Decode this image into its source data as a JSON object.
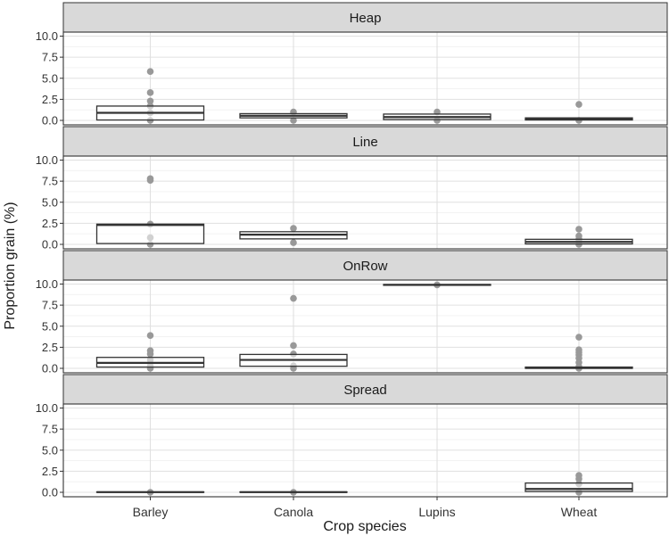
{
  "chart_data": {
    "type": "boxplot",
    "xlabel": "Crop species",
    "ylabel": "Proportion grain (%)",
    "categories": [
      "Barley",
      "Canola",
      "Lupins",
      "Wheat"
    ],
    "ylim": [
      0,
      10
    ],
    "yticks": [
      "0.0",
      "2.5",
      "5.0",
      "7.5",
      "10.0"
    ],
    "grid": true,
    "facets": [
      {
        "title": "Heap",
        "boxes": [
          {
            "category": "Barley",
            "q1": 0.05,
            "median": 0.9,
            "q3": 1.7,
            "points": [
              5.8,
              3.3,
              2.3,
              1.7,
              0.9,
              0.0
            ]
          },
          {
            "category": "Canola",
            "q1": 0.3,
            "median": 0.55,
            "q3": 0.8,
            "points": [
              1.0,
              0.0
            ]
          },
          {
            "category": "Lupins",
            "q1": 0.1,
            "median": 0.4,
            "q3": 0.75,
            "points": [
              1.0,
              0.0
            ]
          },
          {
            "category": "Wheat",
            "q1": 0.05,
            "median": 0.15,
            "q3": 0.3,
            "points": [
              1.9,
              0.0
            ]
          }
        ]
      },
      {
        "title": "Line",
        "boxes": [
          {
            "category": "Barley",
            "q1": 0.1,
            "median": 2.3,
            "q3": 2.4,
            "points": [
              7.8,
              7.6,
              2.4,
              0.8,
              0.0
            ]
          },
          {
            "category": "Canola",
            "q1": 0.65,
            "median": 1.15,
            "q3": 1.5,
            "points": [
              1.9,
              0.2
            ]
          },
          {
            "category": "Wheat",
            "q1": 0.05,
            "median": 0.3,
            "q3": 0.6,
            "points": [
              1.8,
              1.0,
              0.6,
              0.0
            ]
          }
        ]
      },
      {
        "title": "OnRow",
        "boxes": [
          {
            "category": "Barley",
            "q1": 0.15,
            "median": 0.65,
            "q3": 1.3,
            "points": [
              3.9,
              2.1,
              1.7,
              1.0,
              0.3,
              0.0
            ]
          },
          {
            "category": "Canola",
            "q1": 0.25,
            "median": 1.0,
            "q3": 1.65,
            "points": [
              8.3,
              2.7,
              1.7,
              0.3,
              0.0
            ]
          },
          {
            "category": "Lupins",
            "q1": 9.85,
            "median": 9.9,
            "q3": 9.95,
            "points": [
              9.9
            ]
          },
          {
            "category": "Wheat",
            "q1": 0.0,
            "median": 0.05,
            "q3": 0.15,
            "points": [
              3.7,
              2.2,
              1.9,
              1.6,
              1.2,
              0.7,
              0.2,
              0.0
            ]
          }
        ]
      },
      {
        "title": "Spread",
        "boxes": [
          {
            "category": "Barley",
            "q1": 0.0,
            "median": 0.02,
            "q3": 0.05,
            "points": [
              0.0
            ]
          },
          {
            "category": "Canola",
            "q1": 0.0,
            "median": 0.02,
            "q3": 0.05,
            "points": [
              0.0
            ]
          },
          {
            "category": "Wheat",
            "q1": 0.1,
            "median": 0.4,
            "q3": 1.1,
            "points": [
              2.0,
              1.6,
              1.0,
              0.0
            ]
          }
        ]
      }
    ]
  },
  "colors": {
    "strip_fill": "#d9d9d9",
    "strip_border": "#333333",
    "panel_border": "#333333",
    "grid_major": "#e0e0e0",
    "grid_minor": "#f0f0f0",
    "box_stroke": "#333333",
    "point": "#999999",
    "text": "#1a1a1a",
    "axis_text": "#333333"
  }
}
